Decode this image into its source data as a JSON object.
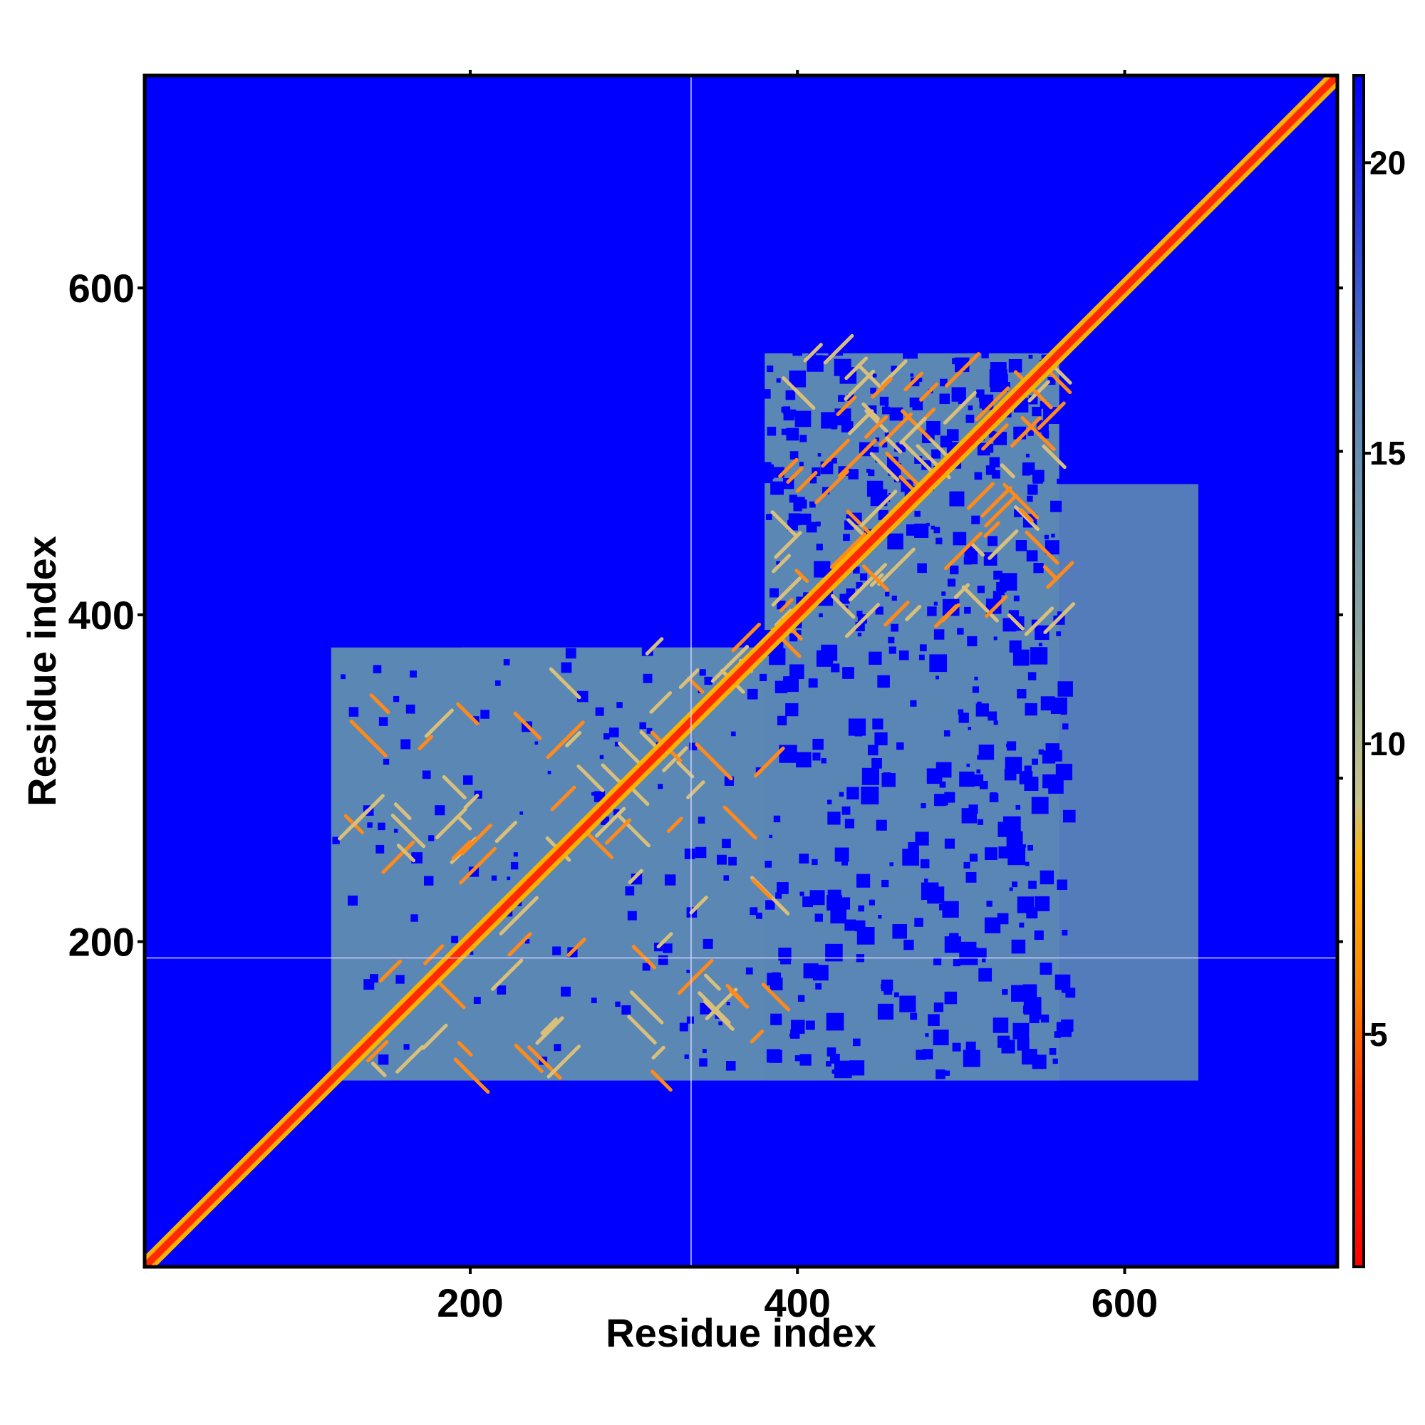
{
  "chart_data": {
    "type": "heatmap",
    "title": "",
    "xlabel": "Residue index",
    "ylabel": "Residue index",
    "xlim": [
      1,
      730
    ],
    "ylim": [
      1,
      730
    ],
    "x_ticks": [
      200,
      400,
      600
    ],
    "y_ticks": [
      200,
      400,
      600
    ],
    "x_tick_labels": [
      "200",
      "400",
      "600"
    ],
    "y_tick_labels": [
      "200",
      "400",
      "600"
    ],
    "grid": false,
    "legend": "colorbar-right",
    "colorbar": {
      "range": [
        1,
        21.5
      ],
      "ticks": [
        5,
        10,
        15,
        20
      ],
      "tick_labels": [
        "5",
        "10",
        "15",
        "20"
      ],
      "stops": [
        {
          "value": 1,
          "color": "#ff0000"
        },
        {
          "value": 4,
          "color": "#ff3d00"
        },
        {
          "value": 6,
          "color": "#ff8a00"
        },
        {
          "value": 8,
          "color": "#ffb300"
        },
        {
          "value": 9,
          "color": "#c9c48a"
        },
        {
          "value": 12,
          "color": "#8aa6a0"
        },
        {
          "value": 16,
          "color": "#5a86b8"
        },
        {
          "value": 21.5,
          "color": "#0000ff"
        }
      ]
    },
    "background_color": "#0000ff",
    "domain_color": "#5b87b5",
    "diagonal_color": "#ff2a00",
    "domains": [
      {
        "start": 115,
        "end": 380
      },
      {
        "start": 380,
        "end": 560
      }
    ],
    "inter_domain_block": {
      "x_range": [
        195,
        560
      ],
      "y_range": [
        115,
        380
      ]
    },
    "reference_lines": {
      "x": 335,
      "y": 190,
      "color": "#d0d0ff"
    }
  }
}
